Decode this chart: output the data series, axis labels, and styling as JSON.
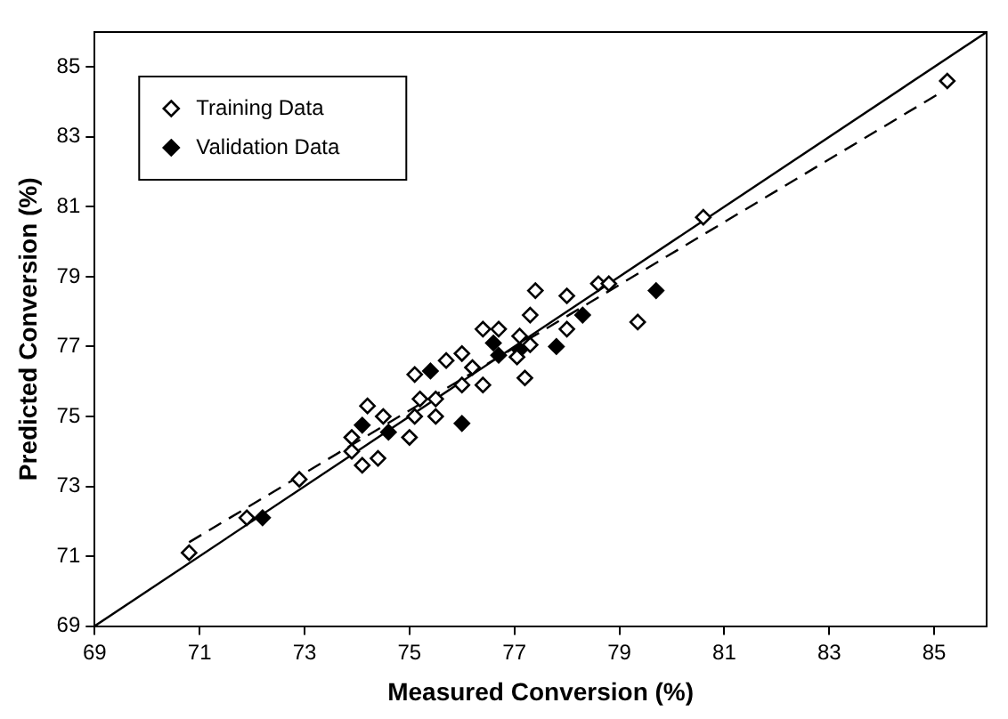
{
  "chart_data": {
    "type": "scatter",
    "xlabel": "Measured Conversion (%)",
    "ylabel": "Predicted Conversion (%)",
    "xlim": [
      69,
      86
    ],
    "ylim": [
      69,
      86
    ],
    "xticks": [
      69,
      71,
      73,
      75,
      77,
      79,
      81,
      83,
      85
    ],
    "yticks": [
      69,
      71,
      73,
      75,
      77,
      79,
      81,
      83,
      85
    ],
    "grid": false,
    "legend": "top left",
    "marker": "diamond",
    "series": [
      {
        "name": "Training Data",
        "color": "#000000",
        "x": [
          70.8,
          71.9,
          72.9,
          73.9,
          73.9,
          74.1,
          74.4,
          74.2,
          74.5,
          75.0,
          75.1,
          75.5,
          77.4,
          78.0,
          78.6,
          78.8,
          79.35,
          78.0,
          77.3,
          77.1,
          77.3,
          77.05,
          77.2,
          76.4,
          76.7,
          76.0,
          75.7,
          76.2,
          75.1,
          76.0,
          76.4,
          75.2,
          75.5,
          85.25,
          80.6
        ],
        "values": [
          71.1,
          72.1,
          73.2,
          74.4,
          74.0,
          73.6,
          73.8,
          75.3,
          75.0,
          74.4,
          75.0,
          75.0,
          78.6,
          78.45,
          78.8,
          78.8,
          77.7,
          77.5,
          77.9,
          77.3,
          77.05,
          76.7,
          76.1,
          77.5,
          77.5,
          76.8,
          76.6,
          76.4,
          76.2,
          75.9,
          75.9,
          75.5,
          75.5,
          84.6,
          80.7
        ]
      },
      {
        "name": "Validation Data",
        "color": "#000000",
        "x": [
          72.2,
          74.1,
          74.6,
          76.0,
          79.7,
          78.3,
          77.8,
          77.1,
          76.6,
          76.7,
          75.4
        ],
        "values": [
          72.1,
          74.75,
          74.55,
          74.8,
          78.6,
          77.9,
          77.0,
          76.9,
          77.1,
          76.75,
          76.3
        ]
      },
      {
        "type": "line",
        "color": "#000000",
        "line_style": "solid",
        "marker": "none",
        "x": [
          69,
          86
        ],
        "values": [
          69,
          86
        ]
      },
      {
        "type": "line",
        "color": "#000000",
        "line_style": "dashed",
        "marker": "none",
        "x": [
          70.8,
          85.05
        ],
        "values": [
          71.4,
          84.2
        ]
      }
    ]
  }
}
